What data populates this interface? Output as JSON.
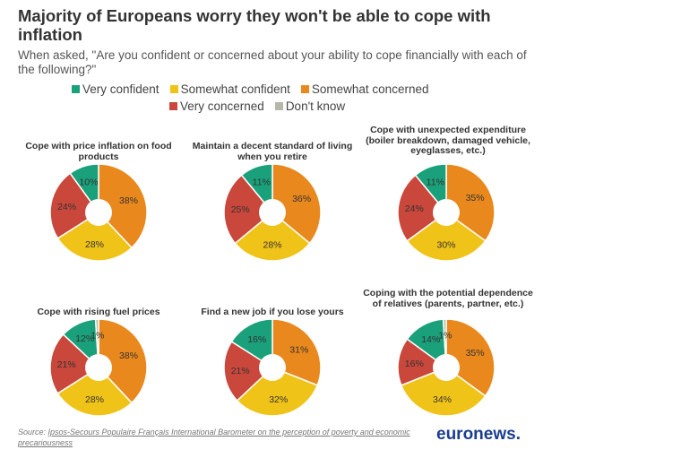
{
  "title": "Majority of Europeans worry they won't be able to cope with inflation",
  "subtitle": "When asked, \"Are you confident or concerned about your ability to cope financially with each of the following?\"",
  "legend": [
    {
      "label": "Very confident",
      "color": "#1aa07a"
    },
    {
      "label": "Somewhat confident",
      "color": "#f0c318"
    },
    {
      "label": "Somewhat concerned",
      "color": "#e9881d"
    },
    {
      "label": "Very concerned",
      "color": "#c9473b"
    },
    {
      "label": "Don't know",
      "color": "#b5b8a8"
    }
  ],
  "chart_data": [
    {
      "type": "pie",
      "title": "Cope with price inflation on food products",
      "categories": [
        "Somewhat concerned",
        "Somewhat confident",
        "Very concerned",
        "Very confident",
        "Don't know"
      ],
      "values": [
        38,
        28,
        24,
        10,
        0
      ],
      "labels": [
        "38%",
        "28%",
        "24%",
        "10%",
        ""
      ]
    },
    {
      "type": "pie",
      "title": "Maintain a decent standard of living when you retire",
      "categories": [
        "Somewhat concerned",
        "Somewhat confident",
        "Very concerned",
        "Very confident",
        "Don't know"
      ],
      "values": [
        36,
        28,
        25,
        11,
        0
      ],
      "labels": [
        "36%",
        "28%",
        "25%",
        "11%",
        ""
      ]
    },
    {
      "type": "pie",
      "title": "Cope with unexpected expenditure (boiler breakdown, damaged vehicle, eyeglasses, etc.)",
      "categories": [
        "Somewhat concerned",
        "Somewhat confident",
        "Very concerned",
        "Very confident",
        "Don't know"
      ],
      "values": [
        35,
        30,
        24,
        11,
        0
      ],
      "labels": [
        "35%",
        "30%",
        "24%",
        "11%",
        ""
      ]
    },
    {
      "type": "pie",
      "title": "Cope with rising fuel prices",
      "categories": [
        "Somewhat concerned",
        "Somewhat confident",
        "Very concerned",
        "Very confident",
        "Don't know"
      ],
      "values": [
        38,
        28,
        21,
        12,
        1
      ],
      "labels": [
        "38%",
        "28%",
        "21%",
        "12%",
        "1%"
      ]
    },
    {
      "type": "pie",
      "title": "Find a new job if you lose yours",
      "categories": [
        "Somewhat concerned",
        "Somewhat confident",
        "Very concerned",
        "Very confident",
        "Don't know"
      ],
      "values": [
        31,
        32,
        21,
        16,
        0
      ],
      "labels": [
        "31%",
        "32%",
        "21%",
        "16%",
        ""
      ]
    },
    {
      "type": "pie",
      "title": "Coping with the potential dependence of relatives (parents, partner, etc.)",
      "categories": [
        "Somewhat concerned",
        "Somewhat confident",
        "Very concerned",
        "Very confident",
        "Don't know"
      ],
      "values": [
        35,
        34,
        16,
        14,
        1
      ],
      "labels": [
        "35%",
        "34%",
        "16%",
        "14%",
        "1%"
      ]
    }
  ],
  "source": {
    "prefix": "Source: ",
    "link_text": "Ipsos-Secours Populaire Français International Barometer on the perception of poverty and economic precariousness"
  },
  "brand": {
    "text": "euronews",
    "dot": "."
  }
}
